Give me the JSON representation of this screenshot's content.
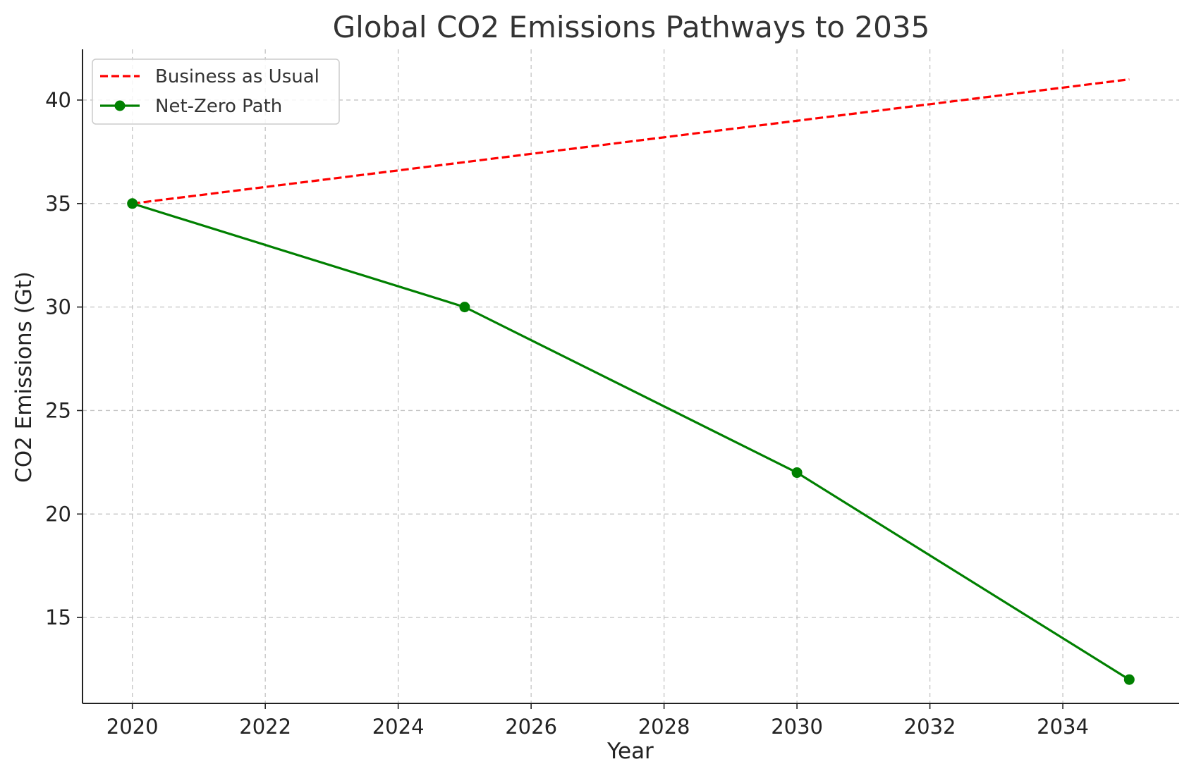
{
  "chart_data": {
    "type": "line",
    "title": "Global CO2 Emissions Pathways to 2035",
    "xlabel": "Year",
    "ylabel": "CO2 Emissions (Gt)",
    "xlim": [
      2019.25,
      2035.75
    ],
    "ylim": [
      10.85,
      42.45
    ],
    "xticks": [
      2020,
      2022,
      2024,
      2026,
      2028,
      2030,
      2032,
      2034
    ],
    "yticks": [
      15,
      20,
      25,
      30,
      35,
      40
    ],
    "grid": true,
    "legend_position": "top-left",
    "series": [
      {
        "name": "Business as Usual",
        "color": "#ff0000",
        "line_style": "dashed",
        "markers": false,
        "x": [
          2020,
          2035
        ],
        "y": [
          35,
          41
        ]
      },
      {
        "name": "Net-Zero Path",
        "color": "#008000",
        "line_style": "solid",
        "markers": true,
        "x": [
          2020,
          2025,
          2030,
          2035
        ],
        "y": [
          35,
          30,
          22,
          12
        ]
      }
    ]
  }
}
